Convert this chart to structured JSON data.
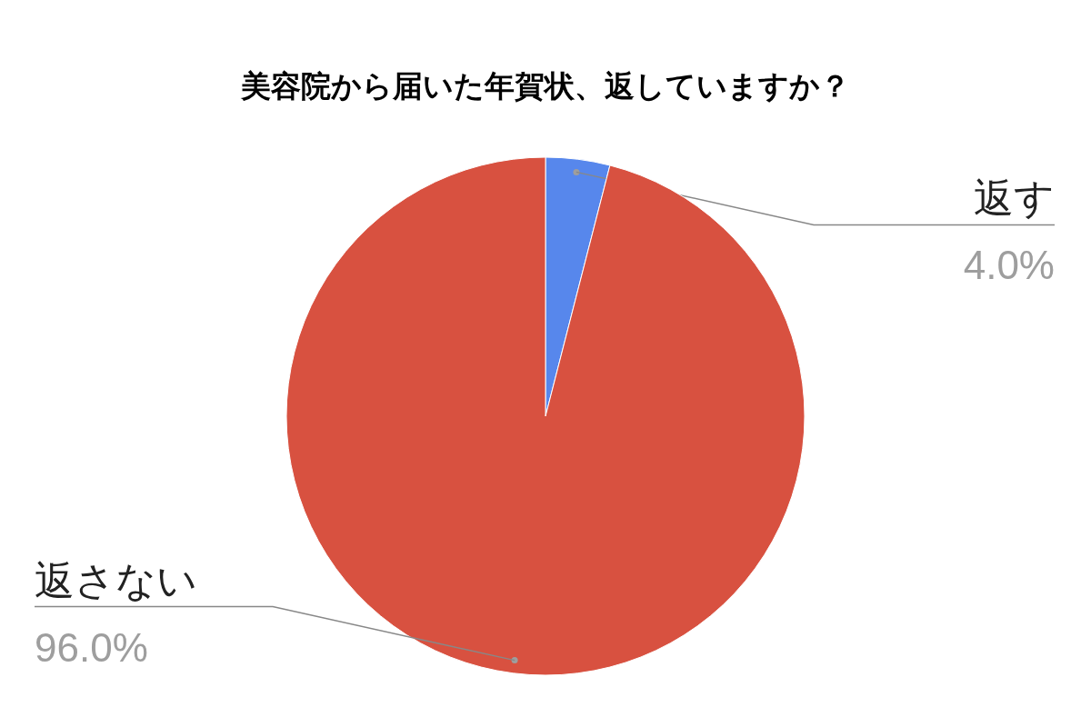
{
  "chart_data": {
    "type": "pie",
    "title": "美容院から届いた年賀状、返していますか？",
    "categories": [
      "返す",
      "返さない"
    ],
    "values": [
      4.0,
      96.0
    ],
    "colors": [
      "#5787ec",
      "#d85140"
    ],
    "value_labels": [
      "4.0%",
      "96.0%"
    ]
  }
}
